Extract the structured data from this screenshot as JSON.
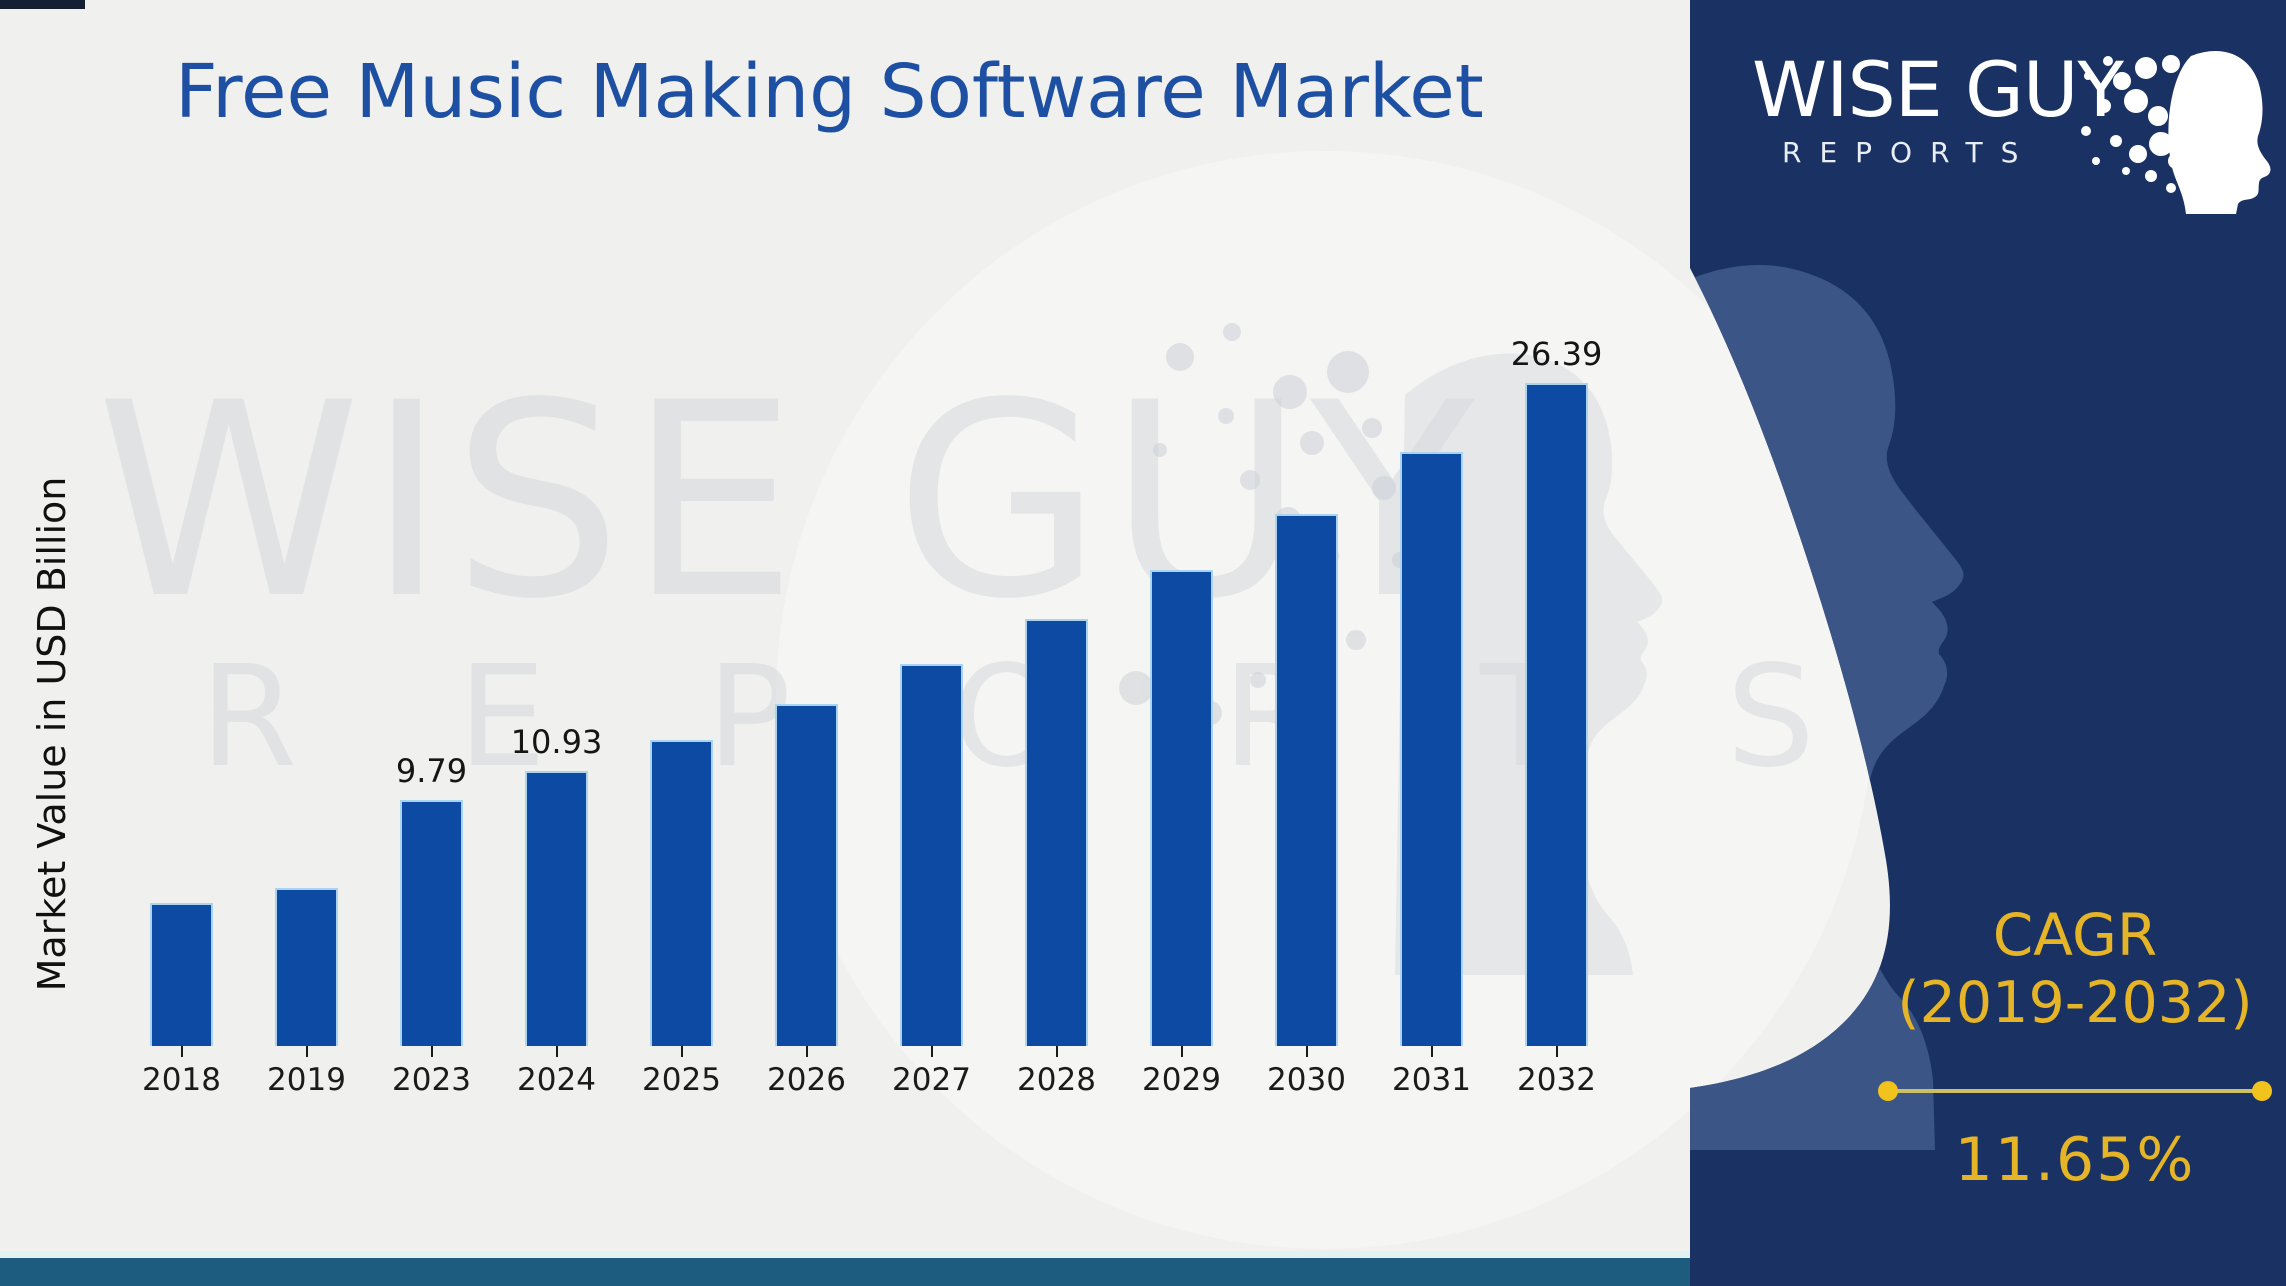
{
  "title": "Free Music Making Software Market",
  "y_axis_label": "Market Value in USD Billion",
  "chart_data": {
    "type": "bar",
    "title": "Free Music Making Software Market",
    "ylabel": "Market Value in USD Billion",
    "xlabel": "",
    "categories": [
      "2018",
      "2019",
      "2023",
      "2024",
      "2025",
      "2026",
      "2027",
      "2028",
      "2029",
      "2030",
      "2031",
      "2032"
    ],
    "values": [
      5.7,
      6.3,
      9.79,
      10.93,
      12.2,
      13.63,
      15.21,
      16.99,
      18.96,
      21.17,
      23.64,
      26.39
    ],
    "bar_labels": [
      "",
      "",
      "9.79",
      "10.93",
      "",
      "",
      "",
      "",
      "",
      "",
      "",
      "26.39"
    ],
    "bar_color": "#0d4aa4",
    "ylim": [
      0,
      28
    ],
    "grid": false,
    "legend_position": "none"
  },
  "watermark": {
    "brand_top": "WISE GUY",
    "brand_bottom": "REPORTS"
  },
  "logo": {
    "brand_top": "WISE GUY",
    "brand_bottom": "REPORTS"
  },
  "cagr": {
    "label": "CAGR",
    "range": "(2019-2032)",
    "value": "11.65%"
  },
  "colors": {
    "bar": "#0d4aa4",
    "title": "#1d4fa3",
    "panel_navy": "#1a3263",
    "panel_face": "#3a5586",
    "accent_gold": "#e5b427",
    "bottom_strip": "#1d5c7e",
    "background": "#f0f0ee"
  }
}
